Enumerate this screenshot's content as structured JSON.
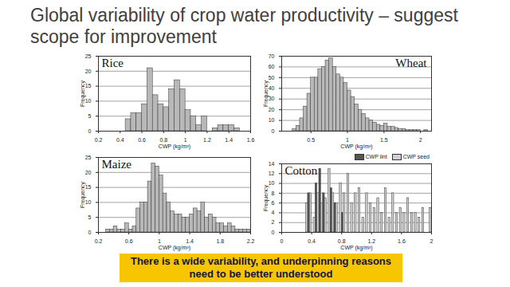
{
  "title": "Global variability of crop water productivity – suggest scope for improvement",
  "caption": "There is a wide variability, and underpinning reasons need to be better understood",
  "chart_data": [
    {
      "type": "histogram",
      "title": "Rice",
      "x_label": "CWP (kg/m³)",
      "y_label": "Frequency",
      "bins": [
        0.2,
        0.25,
        0.3,
        0.35,
        0.4,
        0.45,
        0.5,
        0.55,
        0.6,
        0.65,
        0.7,
        0.75,
        0.8,
        0.85,
        0.9,
        0.95,
        1,
        1.05,
        1.1,
        1.15,
        1.2,
        1.25,
        1.3,
        1.35,
        1.4,
        1.45,
        1.5,
        1.55,
        1.6
      ],
      "values": [
        0,
        0,
        0,
        0,
        0,
        4,
        6,
        6,
        9,
        21,
        12,
        9,
        8,
        14,
        17,
        14,
        7,
        5,
        2,
        5,
        0,
        1,
        2,
        2,
        2,
        1,
        0,
        0
      ],
      "color": "#b8b8b8",
      "xlim": [
        0.2,
        1.6
      ],
      "xticks": [
        0.2,
        0.4,
        0.6,
        0.8,
        1,
        1.2,
        1.4,
        1.6
      ],
      "ylim": [
        0,
        25
      ],
      "yticks": [
        0,
        5,
        10,
        15,
        20,
        25
      ],
      "grid": true
    },
    {
      "type": "histogram",
      "title": "Wheat",
      "x_label": "CWP (kg/m³)",
      "y_label": "Frequency",
      "bins": [
        0.1,
        0.15,
        0.2,
        0.25,
        0.3,
        0.35,
        0.4,
        0.45,
        0.5,
        0.55,
        0.6,
        0.65,
        0.7,
        0.75,
        0.8,
        0.85,
        0.9,
        0.95,
        1,
        1.05,
        1.1,
        1.15,
        1.2,
        1.25,
        1.3,
        1.35,
        1.4,
        1.45,
        1.5,
        1.55,
        1.6,
        1.65,
        1.7,
        1.75,
        1.8,
        1.85,
        1.9,
        1.95,
        2,
        2.05,
        2.1,
        2.15
      ],
      "values": [
        0,
        0,
        0,
        2,
        5,
        12,
        23,
        35,
        50,
        50,
        58,
        60,
        66,
        68,
        60,
        53,
        50,
        45,
        38,
        32,
        25,
        20,
        16,
        12,
        10,
        8,
        6,
        5,
        7,
        4,
        4,
        3,
        2,
        2,
        1,
        1,
        1,
        1,
        0,
        1,
        0
      ],
      "color": "#b8b8b8",
      "xlim": [
        0.1,
        2.15
      ],
      "xticks": [
        0.5,
        1,
        1.5,
        2
      ],
      "ylim": [
        0,
        70
      ],
      "yticks": [
        0,
        10,
        20,
        30,
        40,
        50,
        60,
        70
      ],
      "grid": true
    },
    {
      "type": "histogram",
      "title": "Maize",
      "x_label": "CWP (kg/m³)",
      "y_label": "Frequency",
      "bins": [
        0.2,
        0.25,
        0.3,
        0.35,
        0.4,
        0.45,
        0.5,
        0.55,
        0.6,
        0.65,
        0.7,
        0.75,
        0.8,
        0.85,
        0.9,
        0.95,
        1,
        1.05,
        1.1,
        1.15,
        1.2,
        1.25,
        1.3,
        1.35,
        1.4,
        1.45,
        1.5,
        1.55,
        1.6,
        1.65,
        1.7,
        1.75,
        1.8,
        1.85,
        1.9,
        1.95,
        2,
        2.05,
        2.1,
        2.15,
        2.2
      ],
      "values": [
        0,
        0,
        1,
        1,
        2,
        1,
        1,
        3,
        1,
        2,
        8,
        10,
        10,
        17,
        23,
        22,
        19,
        13,
        10,
        7,
        6,
        6,
        5,
        5,
        6,
        8,
        7,
        10,
        5,
        6,
        5,
        3,
        3,
        2,
        3,
        2,
        1,
        1,
        1,
        1
      ],
      "color": "#b8b8b8",
      "xlim": [
        0.2,
        2.2
      ],
      "xticks": [
        0.2,
        0.6,
        1,
        1.4,
        1.8,
        2.2
      ],
      "ylim": [
        0,
        25
      ],
      "yticks": [
        0,
        5,
        10,
        15,
        20,
        25
      ],
      "grid": true
    },
    {
      "type": "histogram",
      "title": "Cotton",
      "x_label": "CWP (kg/m³)",
      "y_label": "Frequency",
      "bins": [
        0,
        0.05,
        0.1,
        0.15,
        0.2,
        0.25,
        0.3,
        0.35,
        0.4,
        0.45,
        0.5,
        0.55,
        0.6,
        0.65,
        0.7,
        0.75,
        0.8,
        0.85,
        0.9,
        0.95,
        1,
        1.05,
        1.1,
        1.15,
        1.2,
        1.25,
        1.3,
        1.35,
        1.4,
        1.45,
        1.5,
        1.55,
        1.6,
        1.65,
        1.7,
        1.75,
        1.8,
        1.85,
        1.9,
        1.95,
        2
      ],
      "series": [
        {
          "name": "CWP lint",
          "color": "#555555",
          "values": [
            0,
            0,
            0,
            0,
            0,
            0,
            0,
            8,
            0,
            10,
            13,
            8,
            0,
            9,
            6,
            0,
            4,
            0,
            0,
            0,
            0,
            0,
            0,
            0,
            0,
            0,
            0,
            0,
            0,
            0,
            0,
            0,
            0,
            0,
            0,
            0,
            0,
            0,
            0,
            0
          ]
        },
        {
          "name": "CWP seed",
          "color": "#d0d0d0",
          "values": [
            0,
            0,
            0,
            0,
            0,
            0,
            6,
            8,
            3,
            8,
            6,
            7,
            13,
            8,
            6,
            10,
            8,
            12,
            6,
            8,
            9,
            3,
            8,
            6,
            5,
            7,
            4,
            9,
            3,
            8,
            4,
            5,
            4,
            7,
            4,
            4,
            3,
            5,
            0,
            5
          ]
        }
      ],
      "legend": "top-right",
      "xlim": [
        0,
        2
      ],
      "xticks": [
        0,
        0.4,
        0.8,
        1.2,
        1.6,
        2
      ],
      "ylim": [
        0,
        14
      ],
      "yticks": [
        0,
        2,
        4,
        6,
        8,
        10,
        12,
        14
      ],
      "grid": true
    }
  ]
}
